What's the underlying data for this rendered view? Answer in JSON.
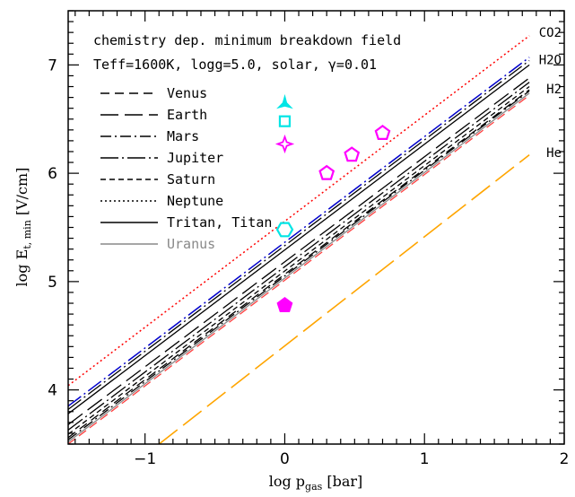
{
  "chart_data": {
    "type": "line",
    "title": "",
    "xlabel": "log p",
    "xlabel_sub": "gas",
    "xlabel_unit": " [bar]",
    "ylabel": "log E",
    "ylabel_sub": "t, min",
    "ylabel_unit": " [V/cm]",
    "xlim": [
      -1.55,
      2.0
    ],
    "ylim": [
      3.5,
      7.5
    ],
    "xticks": [
      -1,
      0,
      1,
      2
    ],
    "yticks": [
      4,
      5,
      6,
      7
    ],
    "xtick_labels": [
      "−1",
      "0",
      "1",
      "2"
    ],
    "ytick_labels": [
      "4",
      "5",
      "6",
      "7"
    ],
    "annotations": [
      "chemistry dep. minimum breakdown field",
      "Teff=1600K,   logg=5.0, solar, γ=0.01"
    ],
    "right_labels": [
      {
        "text": "CO2",
        "y": 7.3
      },
      {
        "text": "H2O",
        "y": 7.05
      },
      {
        "text": "H2",
        "y": 6.78
      },
      {
        "text": "He",
        "y": 6.19
      }
    ],
    "legend_position": "top-left",
    "legend": [
      {
        "name": "Venus",
        "color": "#000000",
        "dash": "10,6",
        "width": 1.4
      },
      {
        "name": "Earth",
        "color": "#000000",
        "dash": "20,7",
        "width": 1.4
      },
      {
        "name": "Mars",
        "color": "#000000",
        "dash": "12,4,2,4",
        "width": 1.4
      },
      {
        "name": "Jupiter",
        "color": "#000000",
        "dash": "20,4,2,4",
        "width": 1.4
      },
      {
        "name": "Saturn",
        "color": "#000000",
        "dash": "6,4",
        "width": 1.4
      },
      {
        "name": "Neptune",
        "color": "#000000",
        "dash": "2,3",
        "width": 1.4
      },
      {
        "name": "Tritan, Titan",
        "color": "#000000",
        "dash": "",
        "width": 1.4
      },
      {
        "name": "Uranus",
        "color": "#888888",
        "dash": "",
        "width": 1.4
      }
    ],
    "series": [
      {
        "name": "",
        "color": "#ff0000",
        "dash": "2,3",
        "width": 1.5,
        "x": [
          -1.55,
          1.75
        ],
        "y": [
          4.04,
          7.27
        ]
      },
      {
        "name": "",
        "color": "#0000cc",
        "dash": "18,4,2,4",
        "width": 1.5,
        "x": [
          -1.55,
          1.75
        ],
        "y": [
          3.85,
          7.07
        ]
      },
      {
        "name": "",
        "color": "#000000",
        "dash": "18,4,2,4",
        "width": 1.3,
        "x": [
          -1.55,
          1.75
        ],
        "y": [
          3.82,
          7.04
        ]
      },
      {
        "name": "",
        "color": "#000000",
        "dash": "",
        "width": 1.3,
        "x": [
          -1.55,
          1.75
        ],
        "y": [
          3.78,
          7.0
        ]
      },
      {
        "name": "",
        "color": "#000000",
        "dash": "20,7",
        "width": 1.3,
        "x": [
          -1.55,
          1.75
        ],
        "y": [
          3.68,
          6.88
        ]
      },
      {
        "name": "",
        "color": "#000000",
        "dash": "20,4,2,4",
        "width": 1.3,
        "x": [
          -1.55,
          1.75
        ],
        "y": [
          3.63,
          6.84
        ]
      },
      {
        "name": "",
        "color": "#000000",
        "dash": "6,4",
        "width": 1.3,
        "x": [
          -1.55,
          1.75
        ],
        "y": [
          3.59,
          6.8
        ]
      },
      {
        "name": "",
        "color": "#000000",
        "dash": "10,6",
        "width": 1.3,
        "x": [
          -1.55,
          1.75
        ],
        "y": [
          3.56,
          6.77
        ]
      },
      {
        "name": "",
        "color": "#000000",
        "dash": "12,4,2,4",
        "width": 1.3,
        "x": [
          -1.55,
          1.75
        ],
        "y": [
          3.54,
          6.76
        ]
      },
      {
        "name": "",
        "color": "#888888",
        "dash": "",
        "width": 1.3,
        "x": [
          -1.55,
          1.75
        ],
        "y": [
          3.52,
          6.74
        ]
      },
      {
        "name": "",
        "color": "#ff4040",
        "dash": "10,5",
        "width": 1.3,
        "x": [
          -1.55,
          1.75
        ],
        "y": [
          3.5,
          6.72
        ]
      },
      {
        "name": "",
        "color": "#ffa500",
        "dash": "26,8",
        "width": 1.6,
        "x": [
          -0.9,
          1.75
        ],
        "y": [
          3.5,
          6.17
        ]
      }
    ],
    "markers": [
      {
        "shape": "tri-star",
        "x": 0.0,
        "y": 6.64,
        "color": "#00e5e5",
        "fill": "#00e5e5"
      },
      {
        "shape": "square",
        "x": 0.0,
        "y": 6.48,
        "color": "#00e5e5",
        "fill": "none"
      },
      {
        "shape": "star4",
        "x": 0.0,
        "y": 6.27,
        "color": "#ff00ff",
        "fill": "none"
      },
      {
        "shape": "pentagon",
        "x": 0.3,
        "y": 6.0,
        "color": "#ff00ff",
        "fill": "none"
      },
      {
        "shape": "pentagon",
        "x": 0.48,
        "y": 6.17,
        "color": "#ff00ff",
        "fill": "none"
      },
      {
        "shape": "pentagon",
        "x": 0.7,
        "y": 6.37,
        "color": "#ff00ff",
        "fill": "none"
      },
      {
        "shape": "hexagon",
        "x": 0.0,
        "y": 5.48,
        "color": "#00e5e5",
        "fill": "none"
      },
      {
        "shape": "pentagon",
        "x": 0.0,
        "y": 4.78,
        "color": "#ff00ff",
        "fill": "#ff00ff"
      }
    ]
  }
}
